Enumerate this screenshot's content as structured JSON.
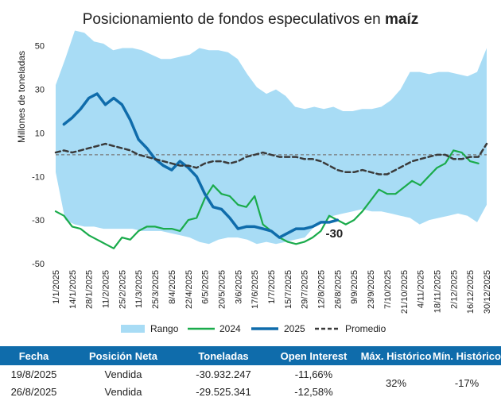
{
  "chart_data": {
    "type": "line",
    "title_main": "Posicionamiento de fondos especulativos en ",
    "title_bold": "maíz",
    "ylabel": "Millones de toneladas",
    "xlabel": "",
    "ylim": [
      -50,
      55
    ],
    "yticks": [
      50,
      30,
      10,
      -10,
      -30,
      -50
    ],
    "x_tick_labels": [
      "1/1/2025",
      "14/1/2025",
      "28/1/2025",
      "11/2/2025",
      "25/2/2025",
      "11/3/2025",
      "25/3/2025",
      "8/4/2025",
      "22/4/2025",
      "6/5/2025",
      "20/5/2025",
      "3/6/2025",
      "17/6/2025",
      "1/7/2025",
      "15/7/2025",
      "29/7/2025",
      "12/8/2025",
      "26/8/2025",
      "9/9/2025",
      "23/9/2025",
      "7/10/2025",
      "21/10/2025",
      "4/11/2025",
      "18/11/2025",
      "2/12/2025",
      "16/12/2025",
      "30/12/2025"
    ],
    "x_range_weeks": [
      0,
      52
    ],
    "zero_line": true,
    "legend_position": "bottom",
    "band": {
      "name": "Rango",
      "color": "#a8dcf5",
      "upper": [
        32,
        44,
        57,
        56,
        52,
        51,
        48,
        49,
        49,
        48,
        46,
        44,
        44,
        45,
        46,
        49,
        48,
        48,
        47,
        44,
        37,
        31,
        28,
        30,
        27,
        22,
        21,
        22,
        21,
        22,
        20,
        20,
        21,
        21,
        22,
        25,
        30,
        38,
        38,
        37,
        38,
        38,
        37,
        36,
        38,
        49
      ],
      "lower": [
        -8,
        -30,
        -32,
        -33,
        -33,
        -34,
        -34,
        -34,
        -34,
        -35,
        -35,
        -35,
        -36,
        -37,
        -38,
        -40,
        -41,
        -39,
        -38,
        -38,
        -39,
        -41,
        -40,
        -41,
        -40,
        -39,
        -38,
        -33,
        -31,
        -28,
        -27,
        -26,
        -25,
        -26,
        -26,
        -27,
        -28,
        -29,
        -32,
        -30,
        -29,
        -28,
        -27,
        -28,
        -31,
        -23
      ]
    },
    "series": [
      {
        "name": "2024",
        "color": "#1aab4b",
        "x": [
          0,
          1,
          2,
          3,
          4,
          5,
          6,
          7,
          8,
          9,
          10,
          11,
          12,
          13,
          14,
          15,
          16,
          17,
          18,
          19,
          20,
          21,
          22,
          23,
          24,
          25,
          26,
          27,
          28,
          29,
          30,
          31,
          32,
          33,
          34,
          35,
          36,
          37,
          38,
          39,
          40,
          41,
          42,
          43,
          44,
          45,
          46,
          47,
          48,
          49,
          50,
          51
        ],
        "values": [
          -26,
          -28,
          -33,
          -34,
          -37,
          -39,
          -41,
          -43,
          -38,
          -39,
          -35,
          -33,
          -33,
          -34,
          -34,
          -35,
          -30,
          -29,
          -20,
          -14,
          -18,
          -19,
          -23,
          -24,
          -19,
          -32,
          -35,
          -38,
          -40,
          -41,
          -40,
          -38,
          -35,
          -28,
          -30,
          -32,
          -30,
          -26,
          -21,
          -16,
          -18,
          -18,
          -15,
          -12,
          -14,
          -10,
          -6,
          -4,
          2,
          1,
          -3,
          -4
        ]
      },
      {
        "name": "2025",
        "color": "#0f6cab",
        "x": [
          1,
          2,
          3,
          4,
          5,
          6,
          7,
          8,
          9,
          10,
          11,
          12,
          13,
          14,
          15,
          16,
          17,
          18,
          19,
          20,
          21,
          22,
          23,
          24,
          25,
          26,
          27,
          28,
          29,
          30,
          31,
          32,
          33,
          34
        ],
        "values": [
          14,
          17,
          21,
          26,
          28,
          23,
          26,
          23,
          16,
          7,
          3,
          -2,
          -5,
          -7,
          -3,
          -6,
          -10,
          -18,
          -24,
          -25,
          -29,
          -34,
          -33,
          -33,
          -34,
          -35,
          -38,
          -36,
          -34,
          -34,
          -33,
          -31,
          -31,
          -30
        ]
      },
      {
        "name": "Promedio",
        "color": "#3a3a3a",
        "dashed": true,
        "x": [
          0,
          1,
          2,
          3,
          4,
          5,
          6,
          7,
          8,
          9,
          10,
          11,
          12,
          13,
          14,
          15,
          16,
          17,
          18,
          19,
          20,
          21,
          22,
          23,
          24,
          25,
          26,
          27,
          28,
          29,
          30,
          31,
          32,
          33,
          34,
          35,
          36,
          37,
          38,
          39,
          40,
          41,
          42,
          43,
          44,
          45,
          46,
          47,
          48,
          49,
          50,
          51,
          52
        ],
        "values": [
          1,
          2,
          1,
          2,
          3,
          4,
          5,
          4,
          3,
          2,
          0,
          -1,
          -2,
          -3,
          -4,
          -5,
          -5,
          -6,
          -4,
          -3,
          -3,
          -4,
          -3,
          -1,
          0,
          1,
          0,
          -1,
          -1,
          -1,
          -2,
          -2,
          -3,
          -5,
          -7,
          -8,
          -8,
          -7,
          -8,
          -9,
          -9,
          -7,
          -5,
          -3,
          -2,
          -1,
          0,
          0,
          -2,
          -2,
          -1,
          -1,
          5
        ]
      }
    ],
    "annotations": [
      {
        "text": "-30",
        "x": 34,
        "y": -30
      }
    ]
  },
  "legend": {
    "rango": "Rango",
    "y2024": "2024",
    "y2025": "2025",
    "promedio": "Promedio"
  },
  "table": {
    "headers": [
      "Fecha",
      "Posición Neta",
      "Toneladas",
      "Open Interest",
      "Máx. Histórico",
      "Mín. Histórico"
    ],
    "rows": [
      {
        "fecha": "19/8/2025",
        "posicion": "Vendida",
        "toneladas": "-30.932.247",
        "open_interest": "-11,66%"
      },
      {
        "fecha": "26/8/2025",
        "posicion": "Vendida",
        "toneladas": "-29.525.341",
        "open_interest": "-12,58%"
      }
    ],
    "max_historico": "32%",
    "min_historico": "-17%",
    "header_color": "#0f6cab"
  }
}
